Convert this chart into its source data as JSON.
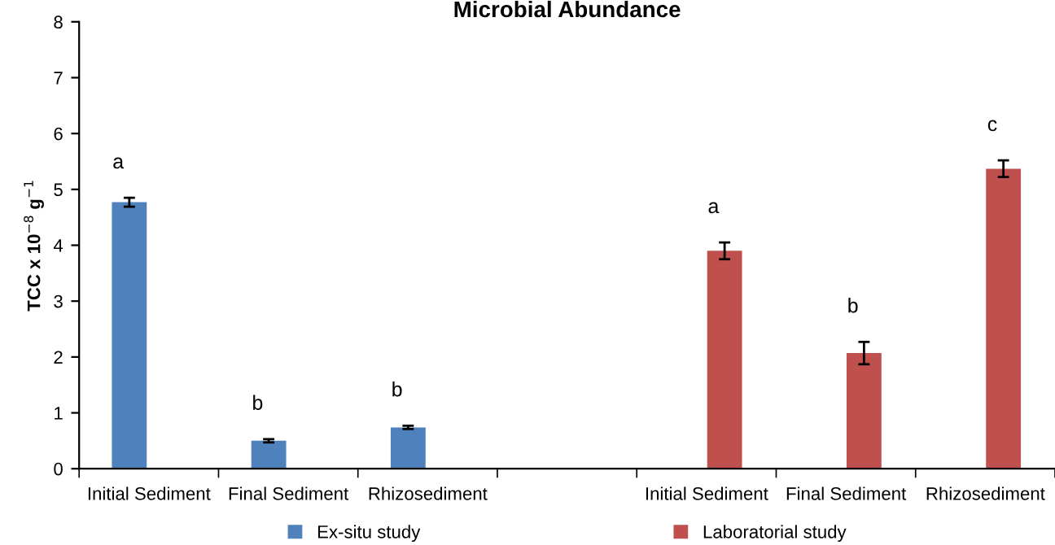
{
  "chart_data": {
    "type": "bar",
    "title": "Microbial Abundance",
    "ylabel": "TCC x 10$^{−8}$ g$^{−1}$",
    "categories": [
      "Initial Sediment",
      "Final Sediment",
      "Rhizosediment",
      null,
      "Initial Sediment",
      "Final Sediment",
      "Rhizosediment"
    ],
    "series": [
      {
        "name": "Ex-situ study",
        "color": "#4f81bd",
        "values": [
          4.77,
          0.5,
          0.74,
          null,
          null,
          null,
          null
        ],
        "errors": [
          0.08,
          0.03,
          0.03,
          null,
          null,
          null,
          null
        ]
      },
      {
        "name": "Laboratorial study",
        "color": "#c0504d",
        "values": [
          null,
          null,
          null,
          null,
          3.9,
          2.07,
          5.37
        ],
        "errors": [
          null,
          null,
          null,
          null,
          0.15,
          0.2,
          0.15
        ]
      }
    ],
    "annotations": [
      "a",
      "b",
      "b",
      "a",
      "b",
      "c"
    ],
    "ylim": [
      0,
      8
    ],
    "yticks": [
      0,
      1,
      2,
      3,
      4,
      5,
      6,
      7,
      8
    ],
    "grid": false,
    "legend": "bottom"
  }
}
